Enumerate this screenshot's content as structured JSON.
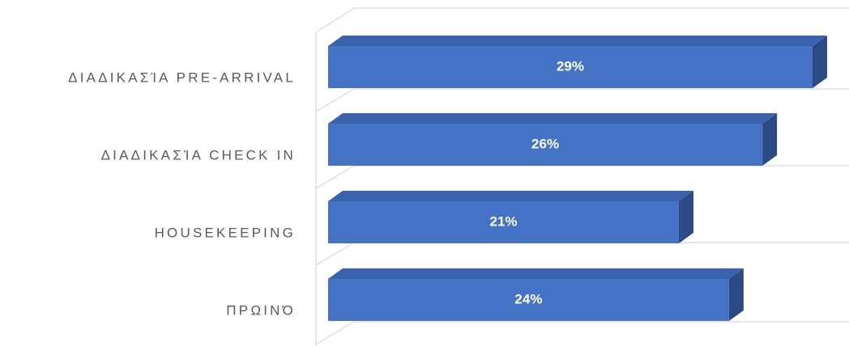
{
  "chart_data": {
    "type": "bar",
    "categories": [
      "ΔΙΑΔΙΚΑΣΊΑ PRE-ARRIVAL",
      "ΔΙΑΔΙΚΑΣΊΑ CHECK IN",
      "HOUSEKEEPING",
      "ΠΡΩΙΝΌ"
    ],
    "values": [
      29,
      26,
      21,
      24
    ],
    "value_labels": [
      "29%",
      "26%",
      "21%",
      "24%"
    ],
    "color": "#4472c4"
  }
}
